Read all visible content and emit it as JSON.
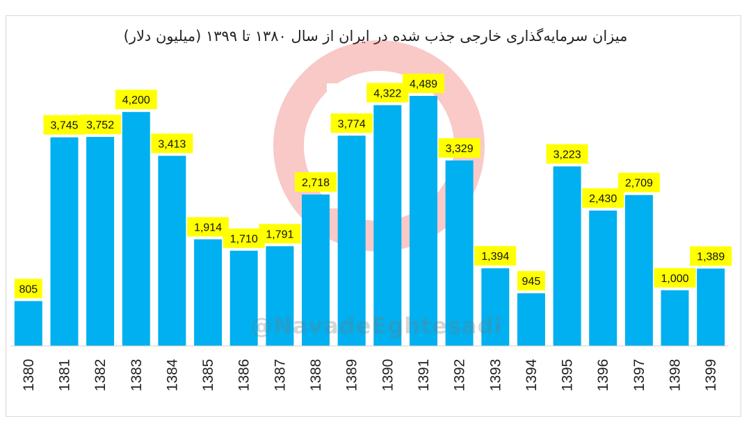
{
  "colors": {
    "bar": "#00b0f0",
    "label_bg": "#ffff00",
    "watermark": "#e8413b"
  },
  "watermark": {
    "handle": "@NavadeEghtesadi",
    "icon": "navad-eghtesadi-logo"
  },
  "chart_data": {
    "type": "bar",
    "title": "میزان سرمایه‌گذاری خارجی جذب شده در ایران از سال ۱۳۸۰ تا ۱۳۹۹ (میلیون دلار)",
    "xlabel": "",
    "ylabel": "",
    "categories": [
      "1380",
      "1381",
      "1382",
      "1383",
      "1384",
      "1385",
      "1386",
      "1387",
      "1388",
      "1389",
      "1390",
      "1391",
      "1392",
      "1393",
      "1394",
      "1395",
      "1396",
      "1397",
      "1398",
      "1399"
    ],
    "values": [
      805,
      3745,
      3752,
      4200,
      3413,
      1914,
      1710,
      1791,
      2718,
      3774,
      4322,
      4489,
      3329,
      1394,
      945,
      3223,
      2430,
      2709,
      1000,
      1389
    ],
    "value_labels": [
      "805",
      "3,745",
      "3,752",
      "4,200",
      "3,413",
      "1,914",
      "1,710",
      "1,791",
      "2,718",
      "3,774",
      "4,322",
      "4,489",
      "3,329",
      "1,394",
      "945",
      "3,223",
      "2,430",
      "2,709",
      "1,000",
      "1,389"
    ],
    "ylim": [
      0,
      4489
    ],
    "grid": false,
    "legend": "none",
    "tick_label_rotation": "vertical"
  }
}
